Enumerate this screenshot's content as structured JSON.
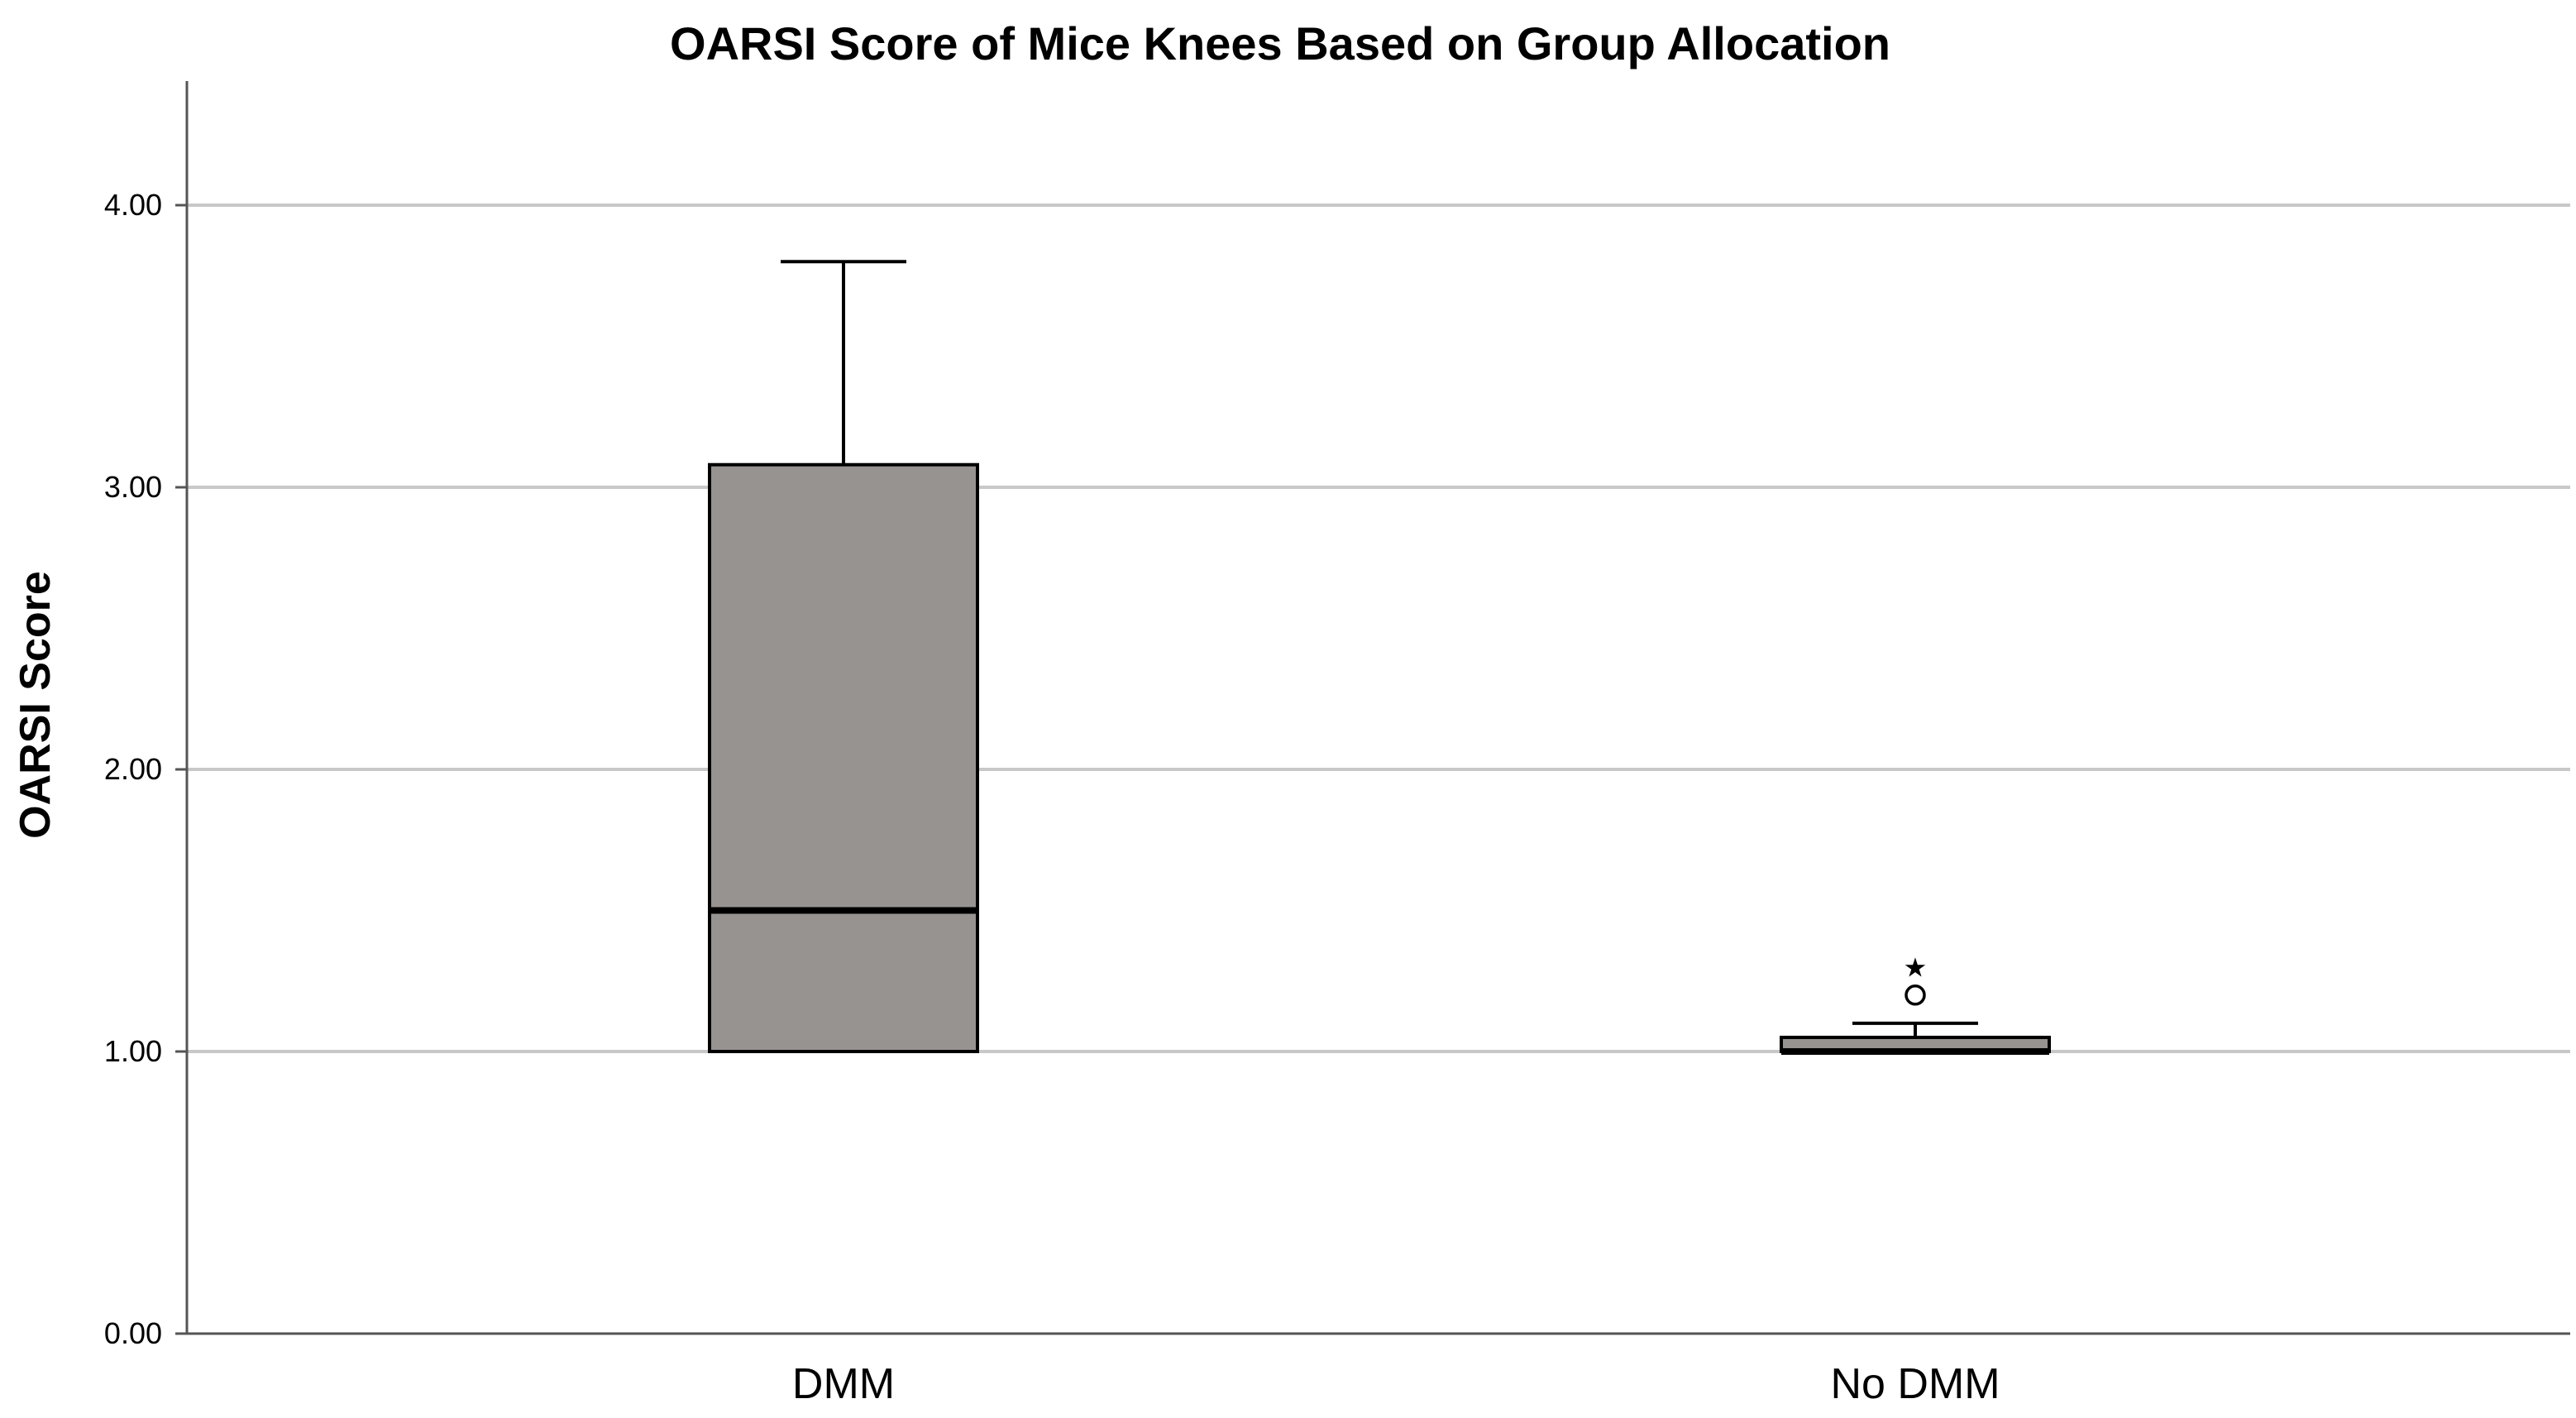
{
  "chart_data": {
    "type": "boxplot",
    "title": "OARSI Score of Mice Knees Based on Group Allocation",
    "xlabel": "",
    "ylabel": "OARSI Score",
    "ylim": [
      0,
      4.45
    ],
    "yticks": [
      0,
      1,
      2,
      3,
      4
    ],
    "ytick_labels": [
      "0.00",
      "1.00",
      "2.00",
      "3.00",
      "4.00"
    ],
    "grid": true,
    "categories": [
      "DMM",
      "No DMM"
    ],
    "boxes": [
      {
        "category": "DMM",
        "min": 1.0,
        "q1": 1.0,
        "median": 1.5,
        "q3": 3.08,
        "max": 3.8,
        "outliers": [],
        "extremes": []
      },
      {
        "category": "No DMM",
        "min": 1.0,
        "q1": 1.0,
        "median": 1.0,
        "q3": 1.05,
        "max": 1.1,
        "outliers": [
          1.2
        ],
        "extremes": [
          1.3
        ]
      }
    ],
    "outlier_marker": "o",
    "extreme_marker": "★",
    "box_fill": "#979391",
    "grid_color": "#c8c8c8",
    "axis_color": "#555555"
  }
}
